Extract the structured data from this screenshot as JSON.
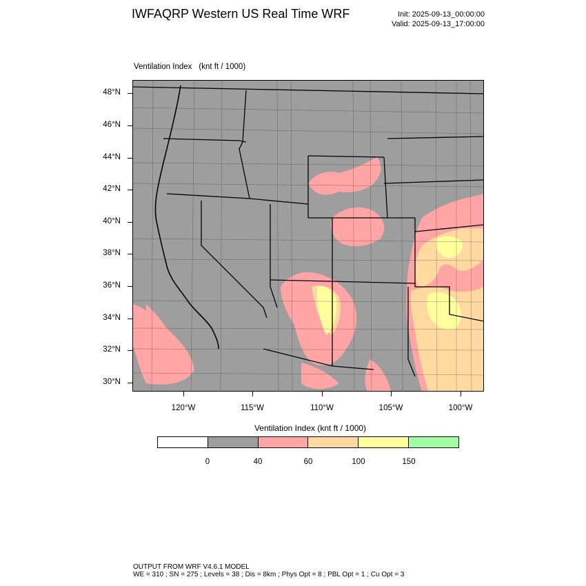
{
  "header": {
    "title": "IWFAQRP Western US Real Time WRF",
    "init": "Init: 2025-09-13_00:00:00",
    "valid": "Valid: 2025-09-13_17:00:00"
  },
  "map": {
    "field_name": "Ventilation Index",
    "units": "(knt ft / 1000)",
    "lat_labels": [
      "48°N",
      "46°N",
      "44°N",
      "42°N",
      "40°N",
      "38°N",
      "36°N",
      "34°N",
      "32°N",
      "30°N"
    ],
    "lon_labels": [
      "120°W",
      "115°W",
      "110°W",
      "105°W",
      "100°W"
    ],
    "colors": {
      "background": "#9e9e9e",
      "pink": "#ffa5a5",
      "peach": "#ffd9a0",
      "yellow": "#ffff9e",
      "boundary": "#000000"
    }
  },
  "legend": {
    "caption": "Ventilation Index   (knt ft / 1000)",
    "labels": [
      "0",
      "40",
      "60",
      "100",
      "150"
    ],
    "colors": [
      "#ffffff",
      "#9e9e9e",
      "#ffa5a5",
      "#ffd9a0",
      "#ffff9e",
      "#a0ffa0"
    ]
  },
  "footer": {
    "line1": "OUTPUT FROM WRF V4.6.1 MODEL",
    "line2": "WE = 310 ; SN = 275 ; Levels = 38 ; Dis = 8km ; Phys Opt = 8 ; PBL Opt = 1 ; Cu Opt = 3"
  }
}
